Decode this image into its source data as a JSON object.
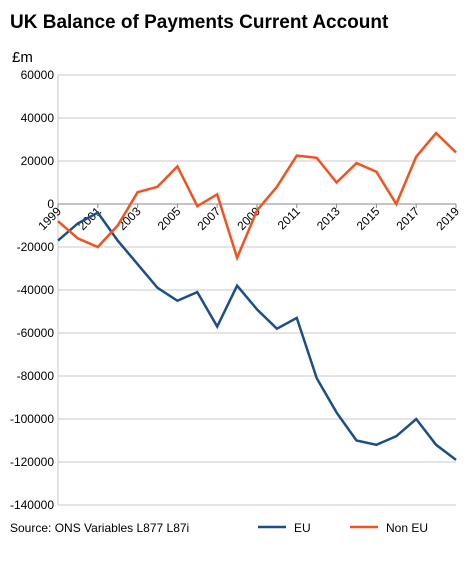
{
  "chart_data": {
    "type": "line",
    "title": "UK Balance of Payments Current Account",
    "y_label": "£m",
    "source": "Source: ONS Variables L877 L87i",
    "x": [
      1999,
      2000,
      2001,
      2002,
      2003,
      2004,
      2005,
      2006,
      2007,
      2008,
      2009,
      2010,
      2011,
      2012,
      2013,
      2014,
      2015,
      2016,
      2017,
      2018,
      2019
    ],
    "xlim": [
      1999,
      2019
    ],
    "xticks": [
      1999,
      2001,
      2003,
      2005,
      2007,
      2009,
      2011,
      2013,
      2015,
      2017,
      2019
    ],
    "ylim": [
      -140000,
      60000
    ],
    "yticks": [
      -140000,
      -120000,
      -100000,
      -80000,
      -60000,
      -40000,
      -20000,
      0,
      20000,
      40000,
      60000
    ],
    "grid": true,
    "legend": "bottom",
    "series": [
      {
        "name": "EU",
        "color": "#1a4f8a",
        "values": [
          -17000,
          -9000,
          -4000,
          -17000,
          -28000,
          -39000,
          -45000,
          -41000,
          -57000,
          -38000,
          -49000,
          -58000,
          -53000,
          -81000,
          -97000,
          -110000,
          -112000,
          -108000,
          -100000,
          -112000,
          -119000
        ]
      },
      {
        "name": "Non EU",
        "color": "#f4511e",
        "values": [
          -8000,
          -16000,
          -20000,
          -10000,
          5500,
          8000,
          17500,
          -1000,
          4500,
          -25000,
          -3000,
          8000,
          22500,
          21500,
          10000,
          19000,
          15000,
          0,
          22000,
          33000,
          24000
        ]
      }
    ]
  }
}
